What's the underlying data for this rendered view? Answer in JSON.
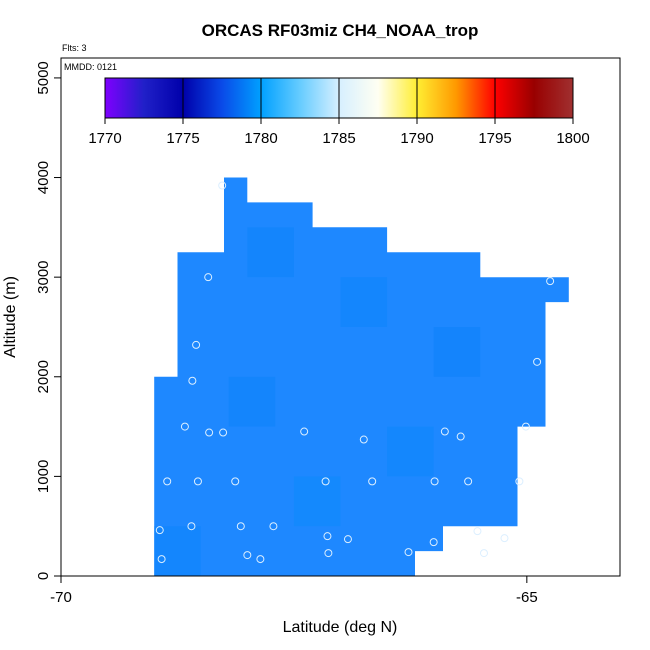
{
  "chart_data": {
    "type": "heatmap",
    "title": "ORCAS RF03miz CH4_NOAA_trop",
    "flights_label": "Flts: 3",
    "date_label": "MMDD: 0121",
    "xlabel": "Latitude (deg N)",
    "ylabel": "Altitude (m)",
    "xlim": [
      -70,
      -64
    ],
    "ylim": [
      0,
      5200
    ],
    "xticks": [
      -70,
      -65
    ],
    "xtick_labels": [
      "-70",
      "-65"
    ],
    "yticks": [
      0,
      1000,
      2000,
      3000,
      4000,
      5000
    ],
    "ytick_labels": [
      "0",
      "1000",
      "2000",
      "3000",
      "4000",
      "5000"
    ],
    "colorbar": {
      "min": 1770,
      "max": 1800,
      "ticks": [
        1770,
        1775,
        1780,
        1785,
        1790,
        1795,
        1800
      ],
      "tick_labels": [
        "1770",
        "1775",
        "1780",
        "1785",
        "1790",
        "1795",
        "1800"
      ],
      "colors": [
        "#7f00ff",
        "#2020c8",
        "#0000aa",
        "#0a4ae8",
        "#00a0ff",
        "#66ccff",
        "#d6efff",
        "#fffff2",
        "#ffee33",
        "#ff9900",
        "#ff0000",
        "#990000",
        "#a03030"
      ]
    },
    "field_color": "#1e88ff",
    "coverage_outline": [
      [
        -69.0,
        0
      ],
      [
        -66.2,
        0
      ],
      [
        -66.2,
        250
      ],
      [
        -65.9,
        250
      ],
      [
        -65.9,
        500
      ],
      [
        -65.1,
        500
      ],
      [
        -65.1,
        1500
      ],
      [
        -64.8,
        1500
      ],
      [
        -64.8,
        2750
      ],
      [
        -64.55,
        2750
      ],
      [
        -64.55,
        3000
      ],
      [
        -65.5,
        3000
      ],
      [
        -65.5,
        3250
      ],
      [
        -66.5,
        3250
      ],
      [
        -66.5,
        3500
      ],
      [
        -67.3,
        3500
      ],
      [
        -67.3,
        3750
      ],
      [
        -68.0,
        3750
      ],
      [
        -68.0,
        4000
      ],
      [
        -68.25,
        4000
      ],
      [
        -68.25,
        3250
      ],
      [
        -68.75,
        3250
      ],
      [
        -68.75,
        2000
      ],
      [
        -69.0,
        2000
      ]
    ],
    "cells": [
      {
        "lat": [
          -69.0,
          -68.5
        ],
        "alt": [
          0,
          500
        ],
        "value": 1779.2
      },
      {
        "lat": [
          -67.5,
          -67.0
        ],
        "alt": [
          500,
          1000
        ],
        "value": 1779.4
      },
      {
        "lat": [
          -66.5,
          -66.0
        ],
        "alt": [
          1000,
          1500
        ],
        "value": 1779.3
      },
      {
        "lat": [
          -68.2,
          -67.7
        ],
        "alt": [
          1500,
          2000
        ],
        "value": 1779.1
      },
      {
        "lat": [
          -66.0,
          -65.5
        ],
        "alt": [
          2000,
          2500
        ],
        "value": 1779.0
      },
      {
        "lat": [
          -67.0,
          -66.5
        ],
        "alt": [
          2500,
          3000
        ],
        "value": 1779.2
      },
      {
        "lat": [
          -68.0,
          -67.5
        ],
        "alt": [
          3000,
          3500
        ],
        "value": 1779.1
      }
    ],
    "points": [
      {
        "lat": -68.27,
        "alt": 3920
      },
      {
        "lat": -68.42,
        "alt": 3000
      },
      {
        "lat": -68.55,
        "alt": 2320
      },
      {
        "lat": -68.59,
        "alt": 1960
      },
      {
        "lat": -68.67,
        "alt": 1500
      },
      {
        "lat": -68.41,
        "alt": 1440
      },
      {
        "lat": -68.26,
        "alt": 1440
      },
      {
        "lat": -67.39,
        "alt": 1450
      },
      {
        "lat": -66.75,
        "alt": 1370
      },
      {
        "lat": -65.88,
        "alt": 1450
      },
      {
        "lat": -65.71,
        "alt": 1400
      },
      {
        "lat": -65.01,
        "alt": 1500
      },
      {
        "lat": -64.89,
        "alt": 2150
      },
      {
        "lat": -64.75,
        "alt": 2960
      },
      {
        "lat": -68.86,
        "alt": 950
      },
      {
        "lat": -68.53,
        "alt": 950
      },
      {
        "lat": -68.13,
        "alt": 950
      },
      {
        "lat": -67.16,
        "alt": 950
      },
      {
        "lat": -66.66,
        "alt": 950
      },
      {
        "lat": -65.99,
        "alt": 950
      },
      {
        "lat": -65.63,
        "alt": 950
      },
      {
        "lat": -65.08,
        "alt": 950
      },
      {
        "lat": -68.94,
        "alt": 460
      },
      {
        "lat": -68.6,
        "alt": 500
      },
      {
        "lat": -68.07,
        "alt": 500
      },
      {
        "lat": -67.72,
        "alt": 500
      },
      {
        "lat": -67.14,
        "alt": 400
      },
      {
        "lat": -66.92,
        "alt": 370
      },
      {
        "lat": -65.53,
        "alt": 450
      },
      {
        "lat": -65.24,
        "alt": 380
      },
      {
        "lat": -66.0,
        "alt": 340
      },
      {
        "lat": -68.92,
        "alt": 170
      },
      {
        "lat": -68.0,
        "alt": 210
      },
      {
        "lat": -67.86,
        "alt": 170
      },
      {
        "lat": -67.13,
        "alt": 230
      },
      {
        "lat": -66.27,
        "alt": 240
      },
      {
        "lat": -65.46,
        "alt": 230
      }
    ]
  }
}
